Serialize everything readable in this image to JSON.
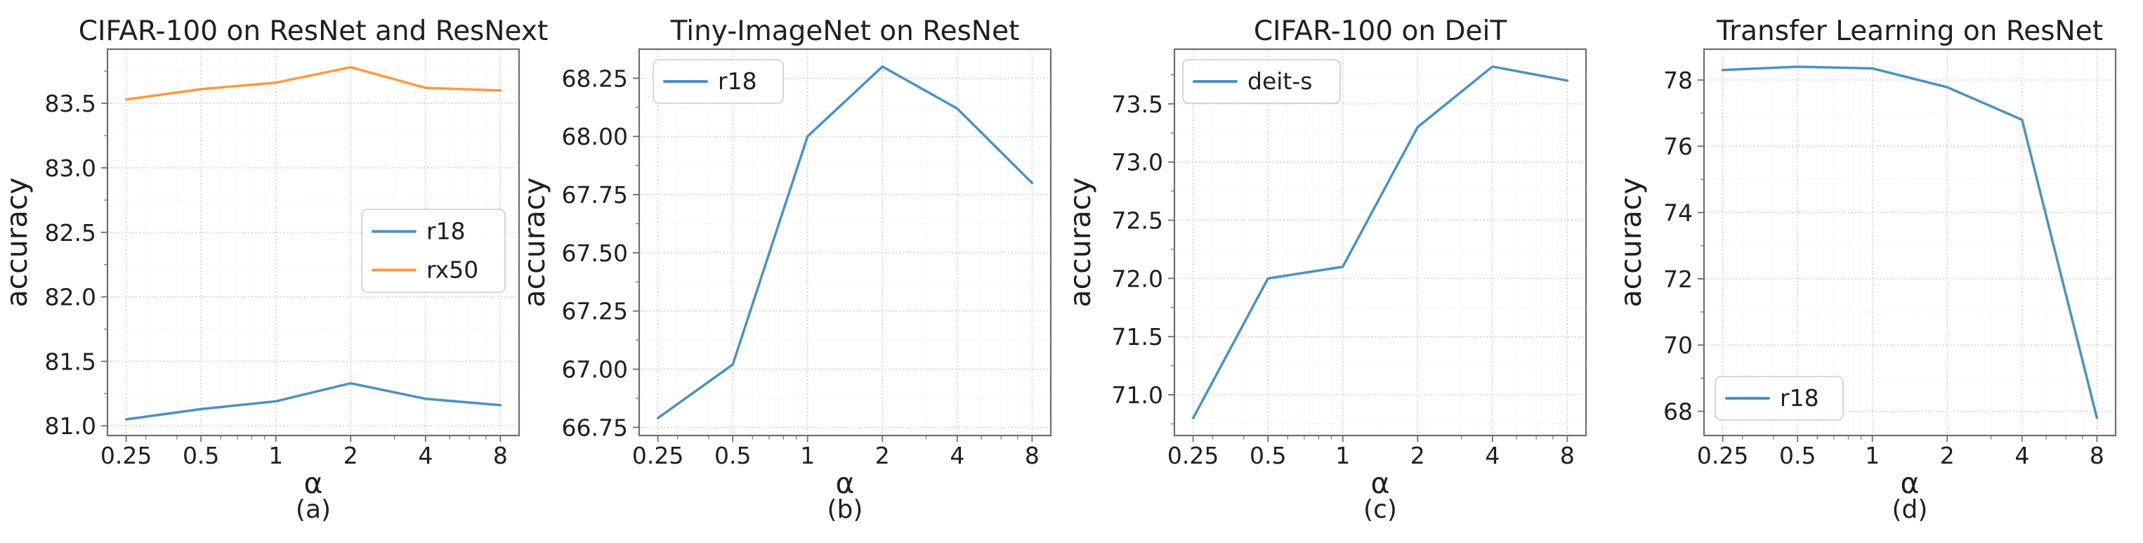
{
  "figure": {
    "style": {
      "background": "#ffffff",
      "text_color": "#1f1f1f",
      "spine_color": "#6f6f6f",
      "grid_major_color": "#c9c9c9",
      "grid_minor_color": "#e2e2e2",
      "legend_border_color": "#cccccc",
      "legend_background": "#ffffff",
      "blue": "#4b92c3",
      "orange": "#ff993f"
    },
    "chart_data": [
      {
        "id": "a",
        "type": "line",
        "title": "CIFAR-100 on ResNet and ResNext",
        "xlabel": "α",
        "ylabel": "accuracy",
        "caption": "(a)",
        "xscale": "log2",
        "x": [
          0.25,
          0.5,
          1,
          2,
          4,
          8
        ],
        "xtick_labels": [
          "0.25",
          "0.5",
          "1",
          "2",
          "4",
          "8"
        ],
        "x_minor_gridlines": [
          0.3,
          0.4,
          0.6,
          0.7,
          0.8,
          0.9,
          3,
          5,
          6,
          7
        ],
        "xlim": [
          0.2102,
          9.5137
        ],
        "ylim": [
          80.925,
          83.92
        ],
        "yticks": [
          81.0,
          81.5,
          82.0,
          82.5,
          83.0,
          83.5
        ],
        "ytick_labels": [
          "81.0",
          "81.5",
          "82.0",
          "82.5",
          "83.0",
          "83.5"
        ],
        "grid": true,
        "legend_position": "center right",
        "series": [
          {
            "name": "r18",
            "color": "#4b92c3",
            "values": [
              81.05,
              81.13,
              81.19,
              81.33,
              81.21,
              81.16
            ]
          },
          {
            "name": "rx50",
            "color": "#ff993f",
            "values": [
              83.53,
              83.61,
              83.66,
              83.78,
              83.62,
              83.6
            ]
          }
        ]
      },
      {
        "id": "b",
        "type": "line",
        "title": "Tiny-ImageNet on ResNet",
        "xlabel": "α",
        "ylabel": "accuracy",
        "caption": "(b)",
        "xscale": "log2",
        "x": [
          0.25,
          0.5,
          1,
          2,
          4,
          8
        ],
        "xtick_labels": [
          "0.25",
          "0.5",
          "1",
          "2",
          "4",
          "8"
        ],
        "x_minor_gridlines": [
          0.3,
          0.4,
          0.6,
          0.7,
          0.8,
          0.9,
          3,
          5,
          6,
          7
        ],
        "xlim": [
          0.2102,
          9.5137
        ],
        "ylim": [
          66.715,
          68.375
        ],
        "yticks": [
          66.75,
          67.0,
          67.25,
          67.5,
          67.75,
          68.0,
          68.25
        ],
        "ytick_labels": [
          "66.75",
          "67.00",
          "67.25",
          "67.50",
          "67.75",
          "68.00",
          "68.25"
        ],
        "grid": true,
        "legend_position": "upper left",
        "series": [
          {
            "name": "r18",
            "color": "#4b92c3",
            "values": [
              66.79,
              67.02,
              68.0,
              68.3,
              68.12,
              67.8
            ]
          }
        ]
      },
      {
        "id": "c",
        "type": "line",
        "title": "CIFAR-100 on DeiT",
        "xlabel": "α",
        "ylabel": "accuracy",
        "caption": "(c)",
        "xscale": "log2",
        "x": [
          0.25,
          0.5,
          1,
          2,
          4,
          8
        ],
        "xtick_labels": [
          "0.25",
          "0.5",
          "1",
          "2",
          "4",
          "8"
        ],
        "x_minor_gridlines": [
          0.3,
          0.4,
          0.6,
          0.7,
          0.8,
          0.9,
          3,
          5,
          6,
          7
        ],
        "xlim": [
          0.2102,
          9.5137
        ],
        "ylim": [
          70.65,
          73.97
        ],
        "yticks": [
          71.0,
          71.5,
          72.0,
          72.5,
          73.0,
          73.5
        ],
        "ytick_labels": [
          "71.0",
          "71.5",
          "72.0",
          "72.5",
          "73.0",
          "73.5"
        ],
        "grid": true,
        "legend_position": "upper left",
        "series": [
          {
            "name": "deit-s",
            "color": "#4b92c3",
            "values": [
              70.8,
              72.0,
              72.1,
              73.3,
              73.82,
              73.7
            ]
          }
        ]
      },
      {
        "id": "d",
        "type": "line",
        "title": "Transfer Learning on ResNet",
        "xlabel": "α",
        "ylabel": "accuracy",
        "caption": "(d)",
        "xscale": "log2",
        "x": [
          0.25,
          0.5,
          1,
          2,
          4,
          8
        ],
        "xtick_labels": [
          "0.25",
          "0.5",
          "1",
          "2",
          "4",
          "8"
        ],
        "x_minor_gridlines": [
          0.3,
          0.4,
          0.6,
          0.7,
          0.8,
          0.9,
          3,
          5,
          6,
          7
        ],
        "xlim": [
          0.2102,
          9.5137
        ],
        "ylim": [
          67.27,
          78.93
        ],
        "yticks": [
          68,
          70,
          72,
          74,
          76,
          78
        ],
        "ytick_labels": [
          "68",
          "70",
          "72",
          "74",
          "76",
          "78"
        ],
        "grid": true,
        "legend_position": "lower left",
        "series": [
          {
            "name": "r18",
            "color": "#4b92c3",
            "values": [
              78.3,
              78.4,
              78.35,
              77.78,
              76.8,
              67.8
            ]
          }
        ]
      }
    ]
  }
}
